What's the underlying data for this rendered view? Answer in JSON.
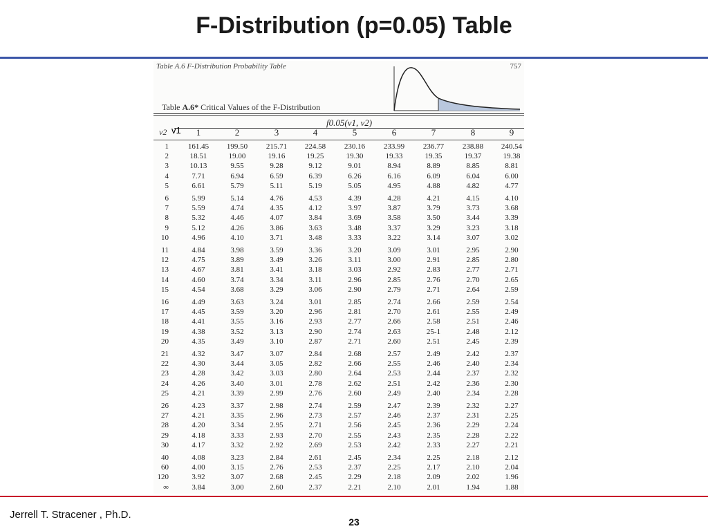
{
  "slide": {
    "title": "F-Distribution (p=0.05) Table",
    "author": "Jerrell T. Stracener , Ph.D.",
    "page": "23"
  },
  "scan": {
    "header_left": "Table A.6 F-Distribution Probability Table",
    "header_right": "757",
    "caption_prefix": "Table ",
    "caption_id": "A.6*",
    "caption_text": " Critical Values of the F-Distribution",
    "f_label": "f0.05(v1, v2)",
    "corner_label": "v2",
    "v1_overlay": "v1"
  },
  "table": {
    "columns": [
      "1",
      "2",
      "3",
      "4",
      "5",
      "6",
      "7",
      "8",
      "9"
    ],
    "rows": [
      {
        "v2": "1",
        "values": [
          "161.45",
          "199.50",
          "215.71",
          "224.58",
          "230.16",
          "233.99",
          "236.77",
          "238.88",
          "240.54"
        ]
      },
      {
        "v2": "2",
        "values": [
          "18.51",
          "19.00",
          "19.16",
          "19.25",
          "19.30",
          "19.33",
          "19.35",
          "19.37",
          "19.38"
        ]
      },
      {
        "v2": "3",
        "values": [
          "10.13",
          "9.55",
          "9.28",
          "9.12",
          "9.01",
          "8.94",
          "8.89",
          "8.85",
          "8.81"
        ]
      },
      {
        "v2": "4",
        "values": [
          "7.71",
          "6.94",
          "6.59",
          "6.39",
          "6.26",
          "6.16",
          "6.09",
          "6.04",
          "6.00"
        ]
      },
      {
        "v2": "5",
        "values": [
          "6.61",
          "5.79",
          "5.11",
          "5.19",
          "5.05",
          "4.95",
          "4.88",
          "4.82",
          "4.77"
        ]
      },
      {
        "v2": "6",
        "values": [
          "5.99",
          "5.14",
          "4.76",
          "4.53",
          "4.39",
          "4.28",
          "4.21",
          "4.15",
          "4.10"
        ]
      },
      {
        "v2": "7",
        "values": [
          "5.59",
          "4.74",
          "4.35",
          "4.12",
          "3.97",
          "3.87",
          "3.79",
          "3.73",
          "3.68"
        ]
      },
      {
        "v2": "8",
        "values": [
          "5.32",
          "4.46",
          "4.07",
          "3.84",
          "3.69",
          "3.58",
          "3.50",
          "3.44",
          "3.39"
        ]
      },
      {
        "v2": "9",
        "values": [
          "5.12",
          "4.26",
          "3.86",
          "3.63",
          "3.48",
          "3.37",
          "3.29",
          "3.23",
          "3.18"
        ]
      },
      {
        "v2": "10",
        "values": [
          "4.96",
          "4.10",
          "3.71",
          "3.48",
          "3.33",
          "3.22",
          "3.14",
          "3.07",
          "3.02"
        ]
      },
      {
        "v2": "11",
        "values": [
          "4.84",
          "3.98",
          "3.59",
          "3.36",
          "3.20",
          "3.09",
          "3.01",
          "2.95",
          "2.90"
        ]
      },
      {
        "v2": "12",
        "values": [
          "4.75",
          "3.89",
          "3.49",
          "3.26",
          "3.11",
          "3.00",
          "2.91",
          "2.85",
          "2.80"
        ]
      },
      {
        "v2": "13",
        "values": [
          "4.67",
          "3.81",
          "3.41",
          "3.18",
          "3.03",
          "2.92",
          "2.83",
          "2.77",
          "2.71"
        ]
      },
      {
        "v2": "14",
        "values": [
          "4.60",
          "3.74",
          "3.34",
          "3.11",
          "2.96",
          "2.85",
          "2.76",
          "2.70",
          "2.65"
        ]
      },
      {
        "v2": "15",
        "values": [
          "4.54",
          "3.68",
          "3.29",
          "3.06",
          "2.90",
          "2.79",
          "2.71",
          "2.64",
          "2.59"
        ]
      },
      {
        "v2": "16",
        "values": [
          "4.49",
          "3.63",
          "3.24",
          "3.01",
          "2.85",
          "2.74",
          "2.66",
          "2.59",
          "2.54"
        ]
      },
      {
        "v2": "17",
        "values": [
          "4.45",
          "3.59",
          "3.20",
          "2.96",
          "2.81",
          "2.70",
          "2.61",
          "2.55",
          "2.49"
        ]
      },
      {
        "v2": "18",
        "values": [
          "4.41",
          "3.55",
          "3.16",
          "2.93",
          "2.77",
          "2.66",
          "2.58",
          "2.51",
          "2.46"
        ]
      },
      {
        "v2": "19",
        "values": [
          "4.38",
          "3.52",
          "3.13",
          "2.90",
          "2.74",
          "2.63",
          "25-1",
          "2.48",
          "2.12"
        ]
      },
      {
        "v2": "20",
        "values": [
          "4.35",
          "3.49",
          "3.10",
          "2.87",
          "2.71",
          "2.60",
          "2.51",
          "2.45",
          "2.39"
        ]
      },
      {
        "v2": "21",
        "values": [
          "4.32",
          "3.47",
          "3.07",
          "2.84",
          "2.68",
          "2.57",
          "2.49",
          "2.42",
          "2.37"
        ]
      },
      {
        "v2": "22",
        "values": [
          "4.30",
          "3.44",
          "3.05",
          "2.82",
          "2.66",
          "2.55",
          "2.46",
          "2.40",
          "2.34"
        ]
      },
      {
        "v2": "23",
        "values": [
          "4.28",
          "3.42",
          "3.03",
          "2.80",
          "2.64",
          "2.53",
          "2.44",
          "2.37",
          "2.32"
        ]
      },
      {
        "v2": "24",
        "values": [
          "4.26",
          "3.40",
          "3.01",
          "2.78",
          "2.62",
          "2.51",
          "2.42",
          "2.36",
          "2.30"
        ]
      },
      {
        "v2": "25",
        "values": [
          "4.21",
          "3.39",
          "2.99",
          "2.76",
          "2.60",
          "2.49",
          "2.40",
          "2.34",
          "2.28"
        ]
      },
      {
        "v2": "26",
        "values": [
          "4.23",
          "3.37",
          "2.98",
          "2.74",
          "2.59",
          "2.47",
          "2.39",
          "2.32",
          "2.27"
        ]
      },
      {
        "v2": "27",
        "values": [
          "4.21",
          "3.35",
          "2.96",
          "2.73",
          "2.57",
          "2.46",
          "2.37",
          "2.31",
          "2.25"
        ]
      },
      {
        "v2": "28",
        "values": [
          "4.20",
          "3.34",
          "2.95",
          "2.71",
          "2.56",
          "2.45",
          "2.36",
          "2.29",
          "2.24"
        ]
      },
      {
        "v2": "29",
        "values": [
          "4.18",
          "3.33",
          "2.93",
          "2.70",
          "2.55",
          "2.43",
          "2.35",
          "2.28",
          "2.22"
        ]
      },
      {
        "v2": "30",
        "values": [
          "4.17",
          "3.32",
          "2.92",
          "2.69",
          "2.53",
          "2.42",
          "2.33",
          "2.27",
          "2.21"
        ]
      },
      {
        "v2": "40",
        "values": [
          "4.08",
          "3.23",
          "2.84",
          "2.61",
          "2.45",
          "2.34",
          "2.25",
          "2.18",
          "2.12"
        ]
      },
      {
        "v2": "60",
        "values": [
          "4.00",
          "3.15",
          "2.76",
          "2.53",
          "2.37",
          "2.25",
          "2.17",
          "2.10",
          "2.04"
        ]
      },
      {
        "v2": "120",
        "values": [
          "3.92",
          "3.07",
          "2.68",
          "2.45",
          "2.29",
          "2.18",
          "2.09",
          "2.02",
          "1.96"
        ]
      },
      {
        "v2": "∞",
        "values": [
          "3.84",
          "3.00",
          "2.60",
          "2.37",
          "2.21",
          "2.10",
          "2.01",
          "1.94",
          "1.88"
        ]
      }
    ]
  }
}
